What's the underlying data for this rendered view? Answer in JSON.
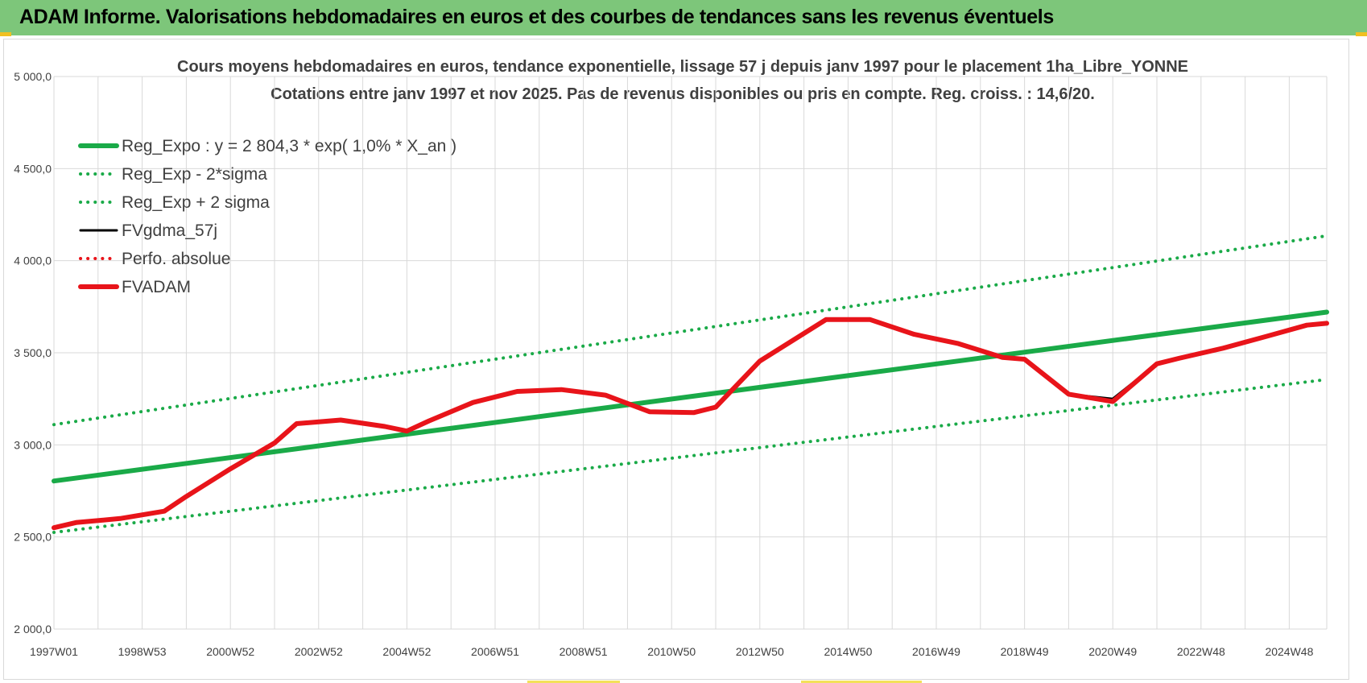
{
  "banner": {
    "title": "ADAM Informe. Valorisations hebdomadaires en euros et des courbes de tendances sans les revenus éventuels"
  },
  "colors": {
    "banner_bg": "#7dc67a",
    "reg_green": "#1aaa48",
    "band_green": "#1aaa48",
    "fvadam_red": "#e8141a",
    "fvgdma_black": "#000000",
    "perfo_red": "#e8141a",
    "grid": "#d9d9d9",
    "text": "#404040"
  },
  "chart_data": {
    "type": "line",
    "title": "Cours moyens hebdomadaires en euros, tendance exponentielle, lissage 57 j depuis janv 1997 pour le placement 1ha_Libre_YONNE",
    "subtitle": "Cotations entre janv 1997 et nov 2025. Pas de revenus disponibles ou pris en compte. Reg. croiss. : 14,6/20.",
    "xlabel": "",
    "ylabel": "",
    "ylim": [
      2000,
      5000
    ],
    "xlim": [
      1997.0,
      2025.85
    ],
    "grid": true,
    "legend_position": "top-left",
    "y_ticks": [
      "5 000,0",
      "4 500,0",
      "4 000,0",
      "3 500,0",
      "3 000,0",
      "2 500,0",
      "2 000,0"
    ],
    "y_tick_values": [
      5000,
      4500,
      4000,
      3500,
      3000,
      2500,
      2000
    ],
    "x_ticks": [
      "1997W01",
      "1998W53",
      "2000W52",
      "2002W52",
      "2004W52",
      "2006W51",
      "2008W51",
      "2010W50",
      "2012W50",
      "2014W50",
      "2016W49",
      "2018W49",
      "2020W49",
      "2022W48",
      "2024W48"
    ],
    "x_tick_values": [
      1997.0,
      1999.0,
      2001.0,
      2003.0,
      2005.0,
      2007.0,
      2009.0,
      2011.0,
      2013.0,
      2015.0,
      2017.0,
      2019.0,
      2021.0,
      2023.0,
      2025.0
    ],
    "series": [
      {
        "name": "Reg_Expo : y = 2 804,3 * exp( 1,0% *  X_an )",
        "style": "solid-thick",
        "color": "#1aaa48",
        "x": [
          1997.0,
          2025.85
        ],
        "y": [
          2804,
          3721
        ]
      },
      {
        "name": "Reg_Exp - 2*sigma",
        "style": "dotted",
        "color": "#1aaa48",
        "x": [
          1997.0,
          2025.85
        ],
        "y": [
          2525,
          3355
        ]
      },
      {
        "name": "Reg_Exp + 2 sigma",
        "style": "dotted",
        "color": "#1aaa48",
        "x": [
          1997.0,
          2025.85
        ],
        "y": [
          3110,
          4135
        ]
      },
      {
        "name": "FVgdma_57j",
        "style": "solid-thin",
        "color": "#000000",
        "x": [
          1997.0,
          1997.5,
          1998.5,
          1999.5,
          2000.0,
          2001.0,
          2002.0,
          2002.5,
          2003.5,
          2004.5,
          2005.0,
          2005.5,
          2006.5,
          2007.5,
          2008.5,
          2009.5,
          2010.5,
          2011.5,
          2012.0,
          2013.0,
          2014.5,
          2015.5,
          2016.5,
          2017.5,
          2018.5,
          2019.0,
          2020.0,
          2021.0,
          2022.0,
          2022.5,
          2023.5,
          2024.5,
          2025.4,
          2025.85
        ],
        "y": [
          2550,
          2578,
          2600,
          2640,
          2720,
          2870,
          3010,
          3115,
          3135,
          3100,
          3075,
          3130,
          3230,
          3290,
          3300,
          3270,
          3180,
          3175,
          3205,
          3455,
          3680,
          3680,
          3600,
          3550,
          3475,
          3465,
          3275,
          3250,
          3440,
          3470,
          3525,
          3590,
          3650,
          3660
        ]
      },
      {
        "name": "Perfo. absolue",
        "style": "dotted",
        "color": "#e8141a",
        "x": [
          1997.0,
          1997.5,
          1998.5,
          1999.5,
          2000.0,
          2001.0,
          2002.0,
          2002.5,
          2003.5,
          2004.5,
          2005.0,
          2005.5,
          2006.5,
          2007.5,
          2008.5,
          2009.5,
          2010.5,
          2011.5,
          2012.0,
          2013.0,
          2014.5,
          2015.5,
          2016.5,
          2017.5,
          2018.5,
          2019.0,
          2020.0,
          2021.0,
          2022.0,
          2022.5,
          2023.5,
          2024.5,
          2025.4,
          2025.85
        ],
        "y": [
          2550,
          2578,
          2600,
          2640,
          2720,
          2870,
          3010,
          3115,
          3135,
          3100,
          3075,
          3130,
          3230,
          3290,
          3300,
          3270,
          3180,
          3175,
          3205,
          3455,
          3680,
          3680,
          3600,
          3550,
          3475,
          3465,
          3275,
          3235,
          3440,
          3470,
          3525,
          3590,
          3650,
          3660
        ]
      },
      {
        "name": "FVADAM",
        "style": "solid-thick",
        "color": "#e8141a",
        "x": [
          1997.0,
          1997.5,
          1998.5,
          1999.5,
          2000.0,
          2001.0,
          2002.0,
          2002.5,
          2003.5,
          2004.5,
          2005.0,
          2005.5,
          2006.5,
          2007.5,
          2008.5,
          2009.5,
          2010.5,
          2011.5,
          2012.0,
          2013.0,
          2014.5,
          2015.5,
          2016.5,
          2017.5,
          2018.5,
          2019.0,
          2020.0,
          2021.0,
          2022.0,
          2022.5,
          2023.5,
          2024.5,
          2025.4,
          2025.85
        ],
        "y": [
          2550,
          2578,
          2600,
          2640,
          2720,
          2870,
          3010,
          3115,
          3135,
          3100,
          3075,
          3130,
          3230,
          3290,
          3300,
          3270,
          3180,
          3175,
          3205,
          3455,
          3680,
          3680,
          3600,
          3550,
          3475,
          3465,
          3275,
          3235,
          3440,
          3470,
          3525,
          3590,
          3650,
          3660
        ]
      }
    ]
  }
}
